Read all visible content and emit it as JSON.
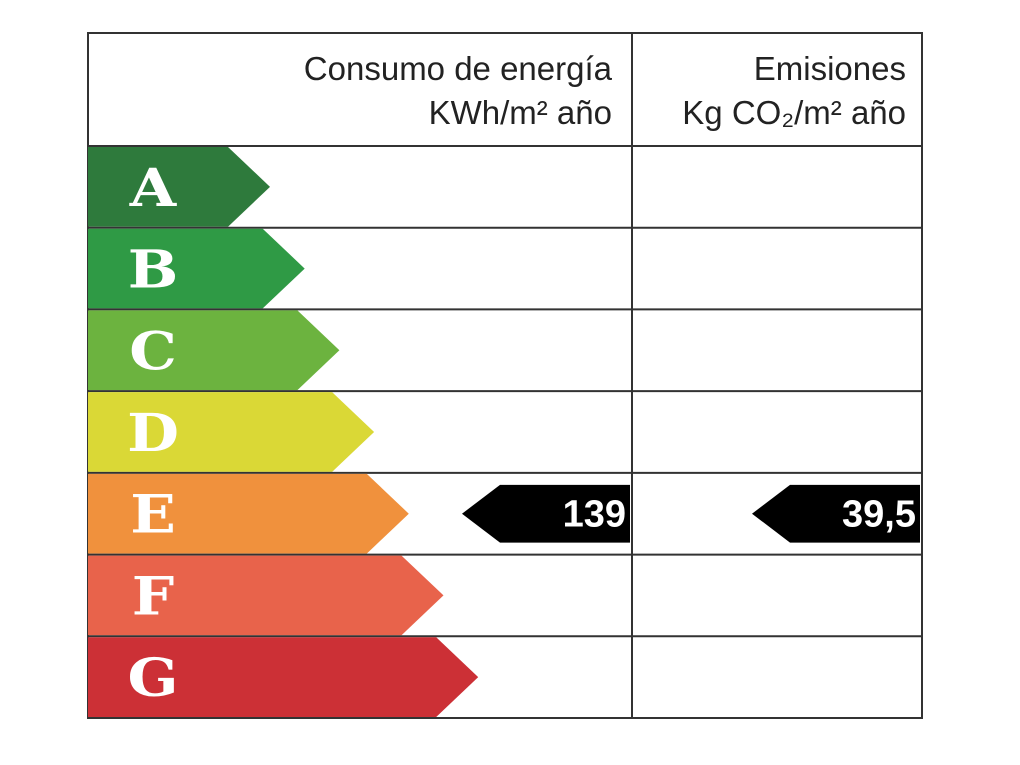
{
  "header": {
    "energy_title": "Consumo de energía",
    "energy_unit": "KWh/m² año",
    "emissions_title": "Emisiones",
    "emissions_unit": "Kg CO₂/m² año"
  },
  "ratings": [
    {
      "letter": "A",
      "color": "#2e7a3c"
    },
    {
      "letter": "B",
      "color": "#2f9a45"
    },
    {
      "letter": "C",
      "color": "#6cb33f"
    },
    {
      "letter": "D",
      "color": "#dad836"
    },
    {
      "letter": "E",
      "color": "#f0913d"
    },
    {
      "letter": "F",
      "color": "#e8634b"
    },
    {
      "letter": "G",
      "color": "#cc3036"
    }
  ],
  "energy": {
    "value": "139",
    "rating": "E"
  },
  "emissions": {
    "value": "39,5",
    "rating": "E"
  }
}
